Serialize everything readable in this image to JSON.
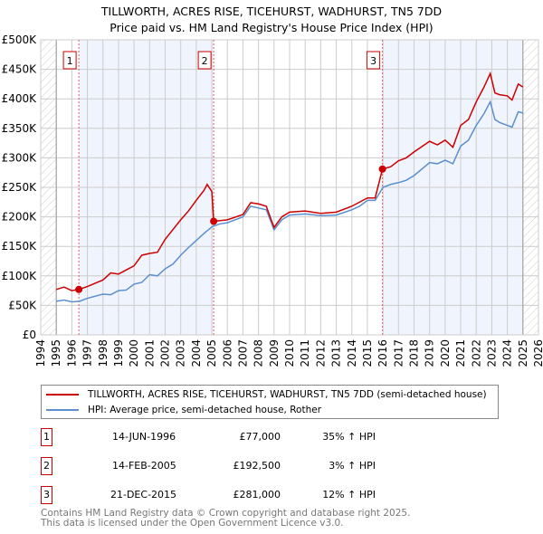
{
  "chart_data": {
    "type": "line",
    "title": "TILLWORTH, ACRES RISE, TICEHURST, WADHURST, TN5 7DD",
    "subtitle": "Price paid vs. HM Land Registry's House Price Index (HPI)",
    "xlim": [
      1994,
      2026
    ],
    "ylim": [
      0,
      500000
    ],
    "x_ticks": [
      "1994",
      "1995",
      "1996",
      "1997",
      "1998",
      "1999",
      "2000",
      "2001",
      "2002",
      "2003",
      "2004",
      "2005",
      "2006",
      "2007",
      "2008",
      "2009",
      "2010",
      "2011",
      "2012",
      "2013",
      "2014",
      "2015",
      "2016",
      "2017",
      "2018",
      "2019",
      "2020",
      "2021",
      "2022",
      "2023",
      "2024",
      "2025",
      "2026"
    ],
    "y_ticks": [
      {
        "v": 0,
        "label": "£0"
      },
      {
        "v": 50000,
        "label": "£50K"
      },
      {
        "v": 100000,
        "label": "£100K"
      },
      {
        "v": 150000,
        "label": "£150K"
      },
      {
        "v": 200000,
        "label": "£200K"
      },
      {
        "v": 250000,
        "label": "£250K"
      },
      {
        "v": 300000,
        "label": "£300K"
      },
      {
        "v": 350000,
        "label": "£350K"
      },
      {
        "v": 400000,
        "label": "£400K"
      },
      {
        "v": 450000,
        "label": "£450K"
      },
      {
        "v": 500000,
        "label": "£500K"
      }
    ],
    "grid": true,
    "series": [
      {
        "name": "TILLWORTH, ACRES RISE, TICEHURST, WADHURST, TN5 7DD (semi-detached house)",
        "color": "#cc0000",
        "x": [
          1995,
          1995.5,
          1996,
          1996.45,
          1997,
          1998,
          1998.5,
          1999,
          2000,
          2000.5,
          2001,
          2001.5,
          2002,
          2003,
          2003.5,
          2004,
          2004.5,
          2004.7,
          2005,
          2005.12,
          2006,
          2007,
          2007.5,
          2008,
          2008.5,
          2009,
          2009.5,
          2010,
          2011,
          2012,
          2013,
          2014,
          2015,
          2015.5,
          2015.97,
          2016.5,
          2017,
          2017.5,
          2018,
          2019,
          2019.5,
          2020,
          2020.5,
          2021,
          2021.5,
          2022,
          2022.5,
          2022.9,
          2023.2,
          2023.5,
          2024,
          2024.3,
          2024.7,
          2025
        ],
        "y": [
          77000,
          81000,
          75000,
          77000,
          82000,
          93000,
          105000,
          103000,
          117000,
          135000,
          138000,
          140000,
          162000,
          195000,
          210000,
          228000,
          245000,
          255000,
          243000,
          192500,
          195000,
          204000,
          224000,
          222000,
          218000,
          182000,
          200000,
          208000,
          210000,
          206000,
          208000,
          218000,
          232000,
          232000,
          281000,
          285000,
          295000,
          300000,
          310000,
          328000,
          322000,
          330000,
          318000,
          355000,
          365000,
          395000,
          420000,
          443000,
          410000,
          407000,
          405000,
          398000,
          425000,
          420000
        ]
      },
      {
        "name": "HPI: Average price, semi-detached house, Rother",
        "color": "#5b8fd0",
        "x": [
          1995,
          1995.5,
          1996,
          1996.5,
          1997,
          1998,
          1998.5,
          1999,
          1999.5,
          2000,
          2000.5,
          2001,
          2001.5,
          2002,
          2002.5,
          2003,
          2003.5,
          2004,
          2004.5,
          2005,
          2005.5,
          2006,
          2007,
          2007.5,
          2008,
          2008.5,
          2009,
          2009.5,
          2010,
          2011,
          2012,
          2013,
          2014,
          2014.5,
          2015,
          2015.5,
          2016,
          2016.5,
          2017,
          2017.5,
          2018,
          2019,
          2019.5,
          2020,
          2020.5,
          2021,
          2021.5,
          2022,
          2022.5,
          2022.9,
          2023.2,
          2023.5,
          2024,
          2024.3,
          2024.7,
          2025
        ],
        "y": [
          57000,
          59000,
          56000,
          57000,
          62000,
          69000,
          68000,
          75000,
          76000,
          86000,
          89000,
          102000,
          100000,
          112000,
          120000,
          135000,
          148000,
          160000,
          172000,
          183000,
          188000,
          190000,
          200000,
          218000,
          215000,
          212000,
          178000,
          195000,
          203000,
          205000,
          202000,
          203000,
          212000,
          218000,
          228000,
          228000,
          250000,
          255000,
          258000,
          262000,
          270000,
          292000,
          290000,
          296000,
          290000,
          320000,
          330000,
          355000,
          375000,
          395000,
          365000,
          360000,
          355000,
          352000,
          378000,
          376000
        ]
      }
    ],
    "sales": [
      {
        "n": "1",
        "x": 1996.45,
        "y": 77000,
        "date": "14-JUN-1996",
        "price": "£77,000",
        "hpi": "35% ↑ HPI"
      },
      {
        "n": "2",
        "x": 2005.12,
        "y": 192500,
        "date": "14-FEB-2005",
        "price": "£192,500",
        "hpi": "3% ↑ HPI"
      },
      {
        "n": "3",
        "x": 2015.97,
        "y": 281000,
        "date": "21-DEC-2015",
        "price": "£281,000",
        "hpi": "12% ↑ HPI"
      }
    ],
    "shaded_periods": [
      [
        1996.45,
        2005.12
      ],
      [
        2015.97,
        2025
      ]
    ],
    "hatched_periods": [
      [
        1994,
        1995
      ],
      [
        2025,
        2026
      ]
    ],
    "legend_placement": "bottom"
  },
  "footer": [
    "Contains HM Land Registry data © Crown copyright and database right 2025.",
    "This data is licensed under the Open Government Licence v3.0."
  ]
}
